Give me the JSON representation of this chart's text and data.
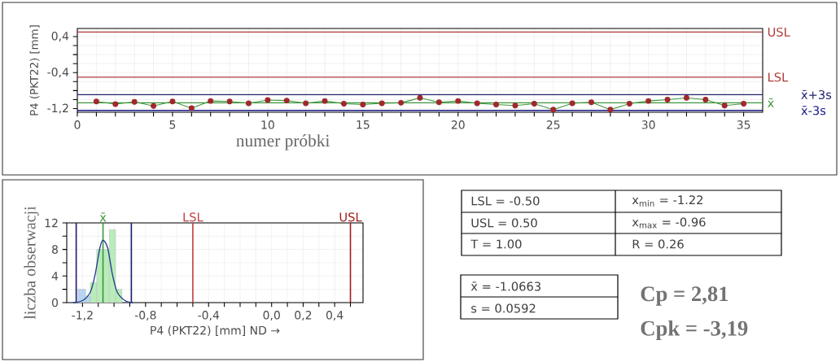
{
  "chart_data": [
    {
      "type": "line",
      "ylabel": "P4 (PKT22) [mm]",
      "xlabel": "numer próbki",
      "marker": "circle",
      "grid": true,
      "x": [
        1,
        2,
        3,
        4,
        5,
        6,
        7,
        8,
        9,
        10,
        11,
        12,
        13,
        14,
        15,
        16,
        17,
        18,
        19,
        20,
        21,
        22,
        23,
        24,
        25,
        26,
        27,
        28,
        29,
        30,
        31,
        32,
        33,
        34,
        35
      ],
      "series": [
        {
          "color": "#3c963c",
          "values": [
            -1.04,
            -1.1,
            -1.05,
            -1.14,
            -1.04,
            -1.19,
            -1.03,
            -1.04,
            -1.08,
            -1.01,
            -1.02,
            -1.08,
            -1.03,
            -1.09,
            -1.11,
            -1.08,
            -1.07,
            -0.96,
            -1.06,
            -1.03,
            -1.08,
            -1.11,
            -1.13,
            -1.09,
            -1.22,
            -1.08,
            -1.06,
            -1.22,
            -1.09,
            -1.03,
            -1.0,
            -0.96,
            -1.0,
            -1.13,
            -1.09
          ]
        }
      ],
      "xlim": [
        0,
        36
      ],
      "xticks": [
        0,
        {
          "value": 1,
          "label": null
        },
        {
          "value": 2,
          "label": null
        },
        {
          "value": 3,
          "label": null
        },
        {
          "value": 4,
          "label": null
        },
        5,
        {
          "value": 6,
          "label": null
        },
        {
          "value": 7,
          "label": null
        },
        {
          "value": 8,
          "label": null
        },
        {
          "value": 9,
          "label": null
        },
        10,
        {
          "value": 11,
          "label": null
        },
        {
          "value": 12,
          "label": null
        },
        {
          "value": 13,
          "label": null
        },
        {
          "value": 14,
          "label": null
        },
        15,
        {
          "value": 16,
          "label": null
        },
        {
          "value": 17,
          "label": null
        },
        {
          "value": 18,
          "label": null
        },
        {
          "value": 19,
          "label": null
        },
        20,
        {
          "value": 21,
          "label": null
        },
        {
          "value": 22,
          "label": null
        },
        {
          "value": 23,
          "label": null
        },
        {
          "value": 24,
          "label": null
        },
        25,
        {
          "value": 26,
          "label": null
        },
        {
          "value": 27,
          "label": null
        },
        {
          "value": 28,
          "label": null
        },
        {
          "value": 29,
          "label": null
        },
        30,
        {
          "value": 31,
          "label": null
        },
        {
          "value": 32,
          "label": null
        },
        {
          "value": 33,
          "label": null
        },
        {
          "value": 34,
          "label": null
        },
        35
      ],
      "ylim": [
        -1.28,
        0.58
      ],
      "yticks": [
        {
          "value": -1.2,
          "label": "-1,2"
        },
        {
          "value": -1.0,
          "label": null
        },
        {
          "value": -0.8,
          "label": null
        },
        {
          "value": -0.6,
          "label": null
        },
        {
          "value": -0.4,
          "label": "-0,4"
        },
        {
          "value": -0.2,
          "label": null
        },
        {
          "value": 0,
          "label": null
        },
        {
          "value": 0.2,
          "label": null
        },
        {
          "value": 0.4,
          "label": "0,4"
        }
      ],
      "ref_lines": [
        {
          "axis": "y",
          "value": 0.5,
          "label": "USL",
          "color": "#b03a3a"
        },
        {
          "axis": "y",
          "value": -0.5,
          "label": "LSL",
          "color": "#b03a3a"
        },
        {
          "axis": "y",
          "value": -0.89,
          "label": "x̄+3s",
          "color": "#22226e"
        },
        {
          "axis": "y",
          "value": -1.07,
          "label": "x̄",
          "color": "#3c963c"
        },
        {
          "axis": "y",
          "value": -1.24,
          "label": "x̄-3s",
          "color": "#1a1a8c"
        }
      ]
    },
    {
      "type": "histogram",
      "ylabel": "liczba obserwacji",
      "xlabel": "P4 (PKT22) [mm]  ND →",
      "grid": true,
      "bins": [
        -1.23,
        -1.18,
        -1.15,
        -1.11,
        -1.07,
        -1.03,
        -0.99,
        -0.95
      ],
      "values": [
        2,
        1,
        3,
        8,
        8,
        11,
        2
      ],
      "colors": [
        "#b8d4f0",
        "#b8d4f0",
        "#b8ecb8",
        "#b8ecb8",
        "#b8ecb8",
        "#b8ecb8",
        "#b8ecb8"
      ],
      "series": [
        {
          "type": "line",
          "color": "#1f3f8f",
          "x": [
            -1.26,
            -1.2,
            -1.15,
            -1.12,
            -1.09,
            -1.07,
            -1.04,
            -1.01,
            -0.98,
            -0.93,
            -0.88
          ],
          "values": [
            0,
            0.3,
            1.6,
            4.2,
            8.2,
            9.4,
            8.2,
            4.2,
            1.6,
            0.3,
            0
          ]
        }
      ],
      "xlim": [
        -1.3,
        0.58
      ],
      "xticks": [
        {
          "value": -1.2,
          "label": "-1,2"
        },
        {
          "value": -1.1,
          "label": null
        },
        {
          "value": -1.0,
          "label": null
        },
        {
          "value": -0.9,
          "label": null
        },
        {
          "value": -0.8,
          "label": "-0,8"
        },
        {
          "value": -0.7,
          "label": null
        },
        {
          "value": -0.6,
          "label": null
        },
        {
          "value": -0.5,
          "label": null
        },
        {
          "value": -0.4,
          "label": "-0,4"
        },
        {
          "value": -0.3,
          "label": null
        },
        {
          "value": -0.2,
          "label": null
        },
        {
          "value": -0.1,
          "label": null
        },
        {
          "value": 0,
          "label": "0,0"
        },
        {
          "value": 0.1,
          "label": null
        },
        {
          "value": 0.2,
          "label": "0,2"
        },
        {
          "value": 0.3,
          "label": null
        },
        {
          "value": 0.4,
          "label": "0,4"
        },
        {
          "value": 0.5,
          "label": null
        }
      ],
      "ylim": [
        0,
        12
      ],
      "yticks": [
        0,
        {
          "value": 2,
          "label": null
        },
        4,
        {
          "value": 6,
          "label": null
        },
        8,
        {
          "value": 10,
          "label": null
        },
        12
      ],
      "ref_lines": [
        {
          "axis": "x",
          "value": -1.24,
          "color": "#1a1a6e"
        },
        {
          "axis": "x",
          "value": -0.89,
          "color": "#1a1a6e"
        },
        {
          "axis": "x",
          "value": -1.07,
          "label": "x̄",
          "color": "#3c963c"
        },
        {
          "axis": "x",
          "value": -0.5,
          "label": "LSL",
          "color": "#c04040"
        },
        {
          "axis": "x",
          "value": 0.5,
          "label": "USL",
          "color": "#a01c1c"
        }
      ]
    },
    {
      "type": "other",
      "annotations": [
        "LSL = -0.50",
        "USL = 0.50",
        "T = 1.00",
        "x$_{min}$ = -1.22",
        "x$_{max}$ = -0.96",
        "R = 0.26",
        "x̄ = -1.0663",
        "s = 0.0592",
        "Cp = 2,81",
        "Cpk = -3,19"
      ]
    }
  ]
}
